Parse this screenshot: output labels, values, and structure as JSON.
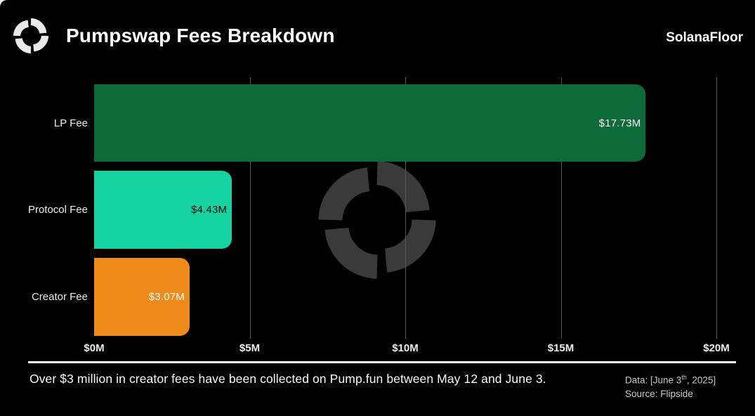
{
  "header": {
    "title": "Pumpswap Fees Breakdown",
    "brand": "SolanaFloor",
    "logo_icon": "solanafloor-swirl-icon",
    "logo_color": "#e9e9e9"
  },
  "watermark": {
    "icon": "solanafloor-swirl-icon",
    "color": "#3a3a3a"
  },
  "chart_data": {
    "type": "bar",
    "orientation": "horizontal",
    "title": "Pumpswap Fees Breakdown",
    "categories": [
      "LP Fee",
      "Protocol Fee",
      "Creator Fee"
    ],
    "values": [
      17.73,
      4.43,
      3.07
    ],
    "value_labels": [
      "$17.73M",
      "$4.43M",
      "$3.07M"
    ],
    "bar_colors": [
      "#0c6b38",
      "#14d3a1",
      "#ef8b1b"
    ],
    "value_label_colors": [
      "#ffffff",
      "#0a0a0a",
      "#ffffff"
    ],
    "xlim": [
      0,
      20
    ],
    "x_ticks": [
      0,
      5,
      10,
      15,
      20
    ],
    "x_tick_labels": [
      "$0M",
      "$5M",
      "$10M",
      "$15M",
      "$20M"
    ],
    "grid": true,
    "legend": "none"
  },
  "footer": {
    "annotation": "Over $3 million in creator fees have been collected on Pump.fun between May 12 and June 3.",
    "data_note": {
      "prefix": "Data: [June 3",
      "superscript": "th",
      "suffix": ", 2025]"
    },
    "source": "Source: Flipside"
  },
  "colors": {
    "background": "#000000",
    "text": "#ffffff",
    "muted_text": "#c9c9c9",
    "separator": "#ffffff",
    "gridline": "#565656"
  }
}
